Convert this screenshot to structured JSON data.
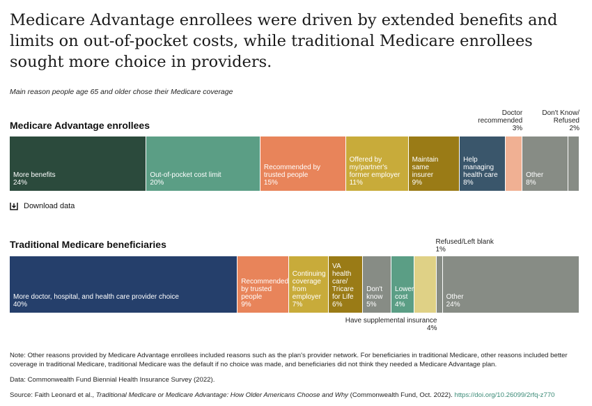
{
  "title": "Medicare Advantage enrollees were driven by extended benefits and limits on out-of-pocket costs, while traditional Medicare enrollees sought more choice in providers.",
  "subtitle": "Main reason people age 65 and older chose their Medicare coverage",
  "download_label": "Download data",
  "chart_data": [
    {
      "type": "bar",
      "stacked": "horizontal-100%",
      "title": "Medicare Advantage enrollees",
      "unit": "%",
      "segments": [
        {
          "label": "More benefits",
          "value": 24,
          "color": "#2b4a3c",
          "label_position": "inside"
        },
        {
          "label": "Out-of-pocket cost limit",
          "value": 20,
          "color": "#5b9e85",
          "label_position": "inside"
        },
        {
          "label": "Recommended by\ntrusted people",
          "value": 15,
          "color": "#e8845a",
          "label_position": "inside"
        },
        {
          "label": "Offered by\nmy/partner's\nformer employer",
          "value": 11,
          "color": "#c8ab3a",
          "label_position": "inside"
        },
        {
          "label": "Maintain\nsame\ninsurer",
          "value": 9,
          "color": "#9a7b16",
          "label_position": "inside"
        },
        {
          "label": "Help\nmanaging\nhealth care",
          "value": 8,
          "color": "#3a566b",
          "label_position": "inside"
        },
        {
          "label": "Doctor\nrecommended",
          "value": 3,
          "color": "#f0b093",
          "label_position": "above"
        },
        {
          "label": "Other",
          "value": 8,
          "color": "#878c85",
          "label_position": "inside"
        },
        {
          "label": "Don't Know/\nRefused",
          "value": 2,
          "color": "#878c85",
          "label_position": "above"
        }
      ]
    },
    {
      "type": "bar",
      "stacked": "horizontal-100%",
      "title": "Traditional Medicare beneficiaries",
      "unit": "%",
      "segments": [
        {
          "label": "More doctor, hospital, and health care provider choice",
          "value": 40,
          "color": "#253f6b",
          "label_position": "inside"
        },
        {
          "label": "Recommended\nby trusted\npeople",
          "value": 9,
          "color": "#e8845a",
          "label_position": "inside"
        },
        {
          "label": "Continuing\ncoverage\nfrom\nemployer",
          "value": 7,
          "color": "#c8ab3a",
          "label_position": "inside"
        },
        {
          "label": "VA\nhealth\ncare/\nTricare\nfor Life",
          "value": 6,
          "color": "#9a7b16",
          "label_position": "inside"
        },
        {
          "label": "Don't\nknow",
          "value": 5,
          "color": "#878c85",
          "label_position": "inside"
        },
        {
          "label": "Lower\ncost",
          "value": 4,
          "color": "#5b9e85",
          "label_position": "inside"
        },
        {
          "label": "Have supplemental insurance",
          "value": 4,
          "color": "#dfd186",
          "label_position": "below"
        },
        {
          "label": "Refused/Left blank",
          "value": 1,
          "color": "#878c85",
          "label_position": "above-left"
        },
        {
          "label": "Other",
          "value": 24,
          "color": "#878c85",
          "label_position": "inside"
        }
      ]
    }
  ],
  "notes": {
    "note": "Note: Other reasons provided by Medicare Advantage enrollees included reasons such as the plan's provider network. For beneficiaries in traditional Medicare, other reasons included better coverage in traditional Medicare, traditional Medicare was the default if no choice was made, and beneficiaries did not think they needed a Medicare Advantage plan.",
    "data": "Data: Commonwealth Fund Biennial Health Insurance Survey (2022).",
    "source_prefix": "Source: Faith Leonard et al., ",
    "source_title": "Traditional Medicare or Medicare Advantage: How Older Americans Choose and Why",
    "source_suffix": " (Commonwealth Fund, Oct. 2022). ",
    "doi": "https://doi.org/10.26099/2rfq-z770"
  }
}
